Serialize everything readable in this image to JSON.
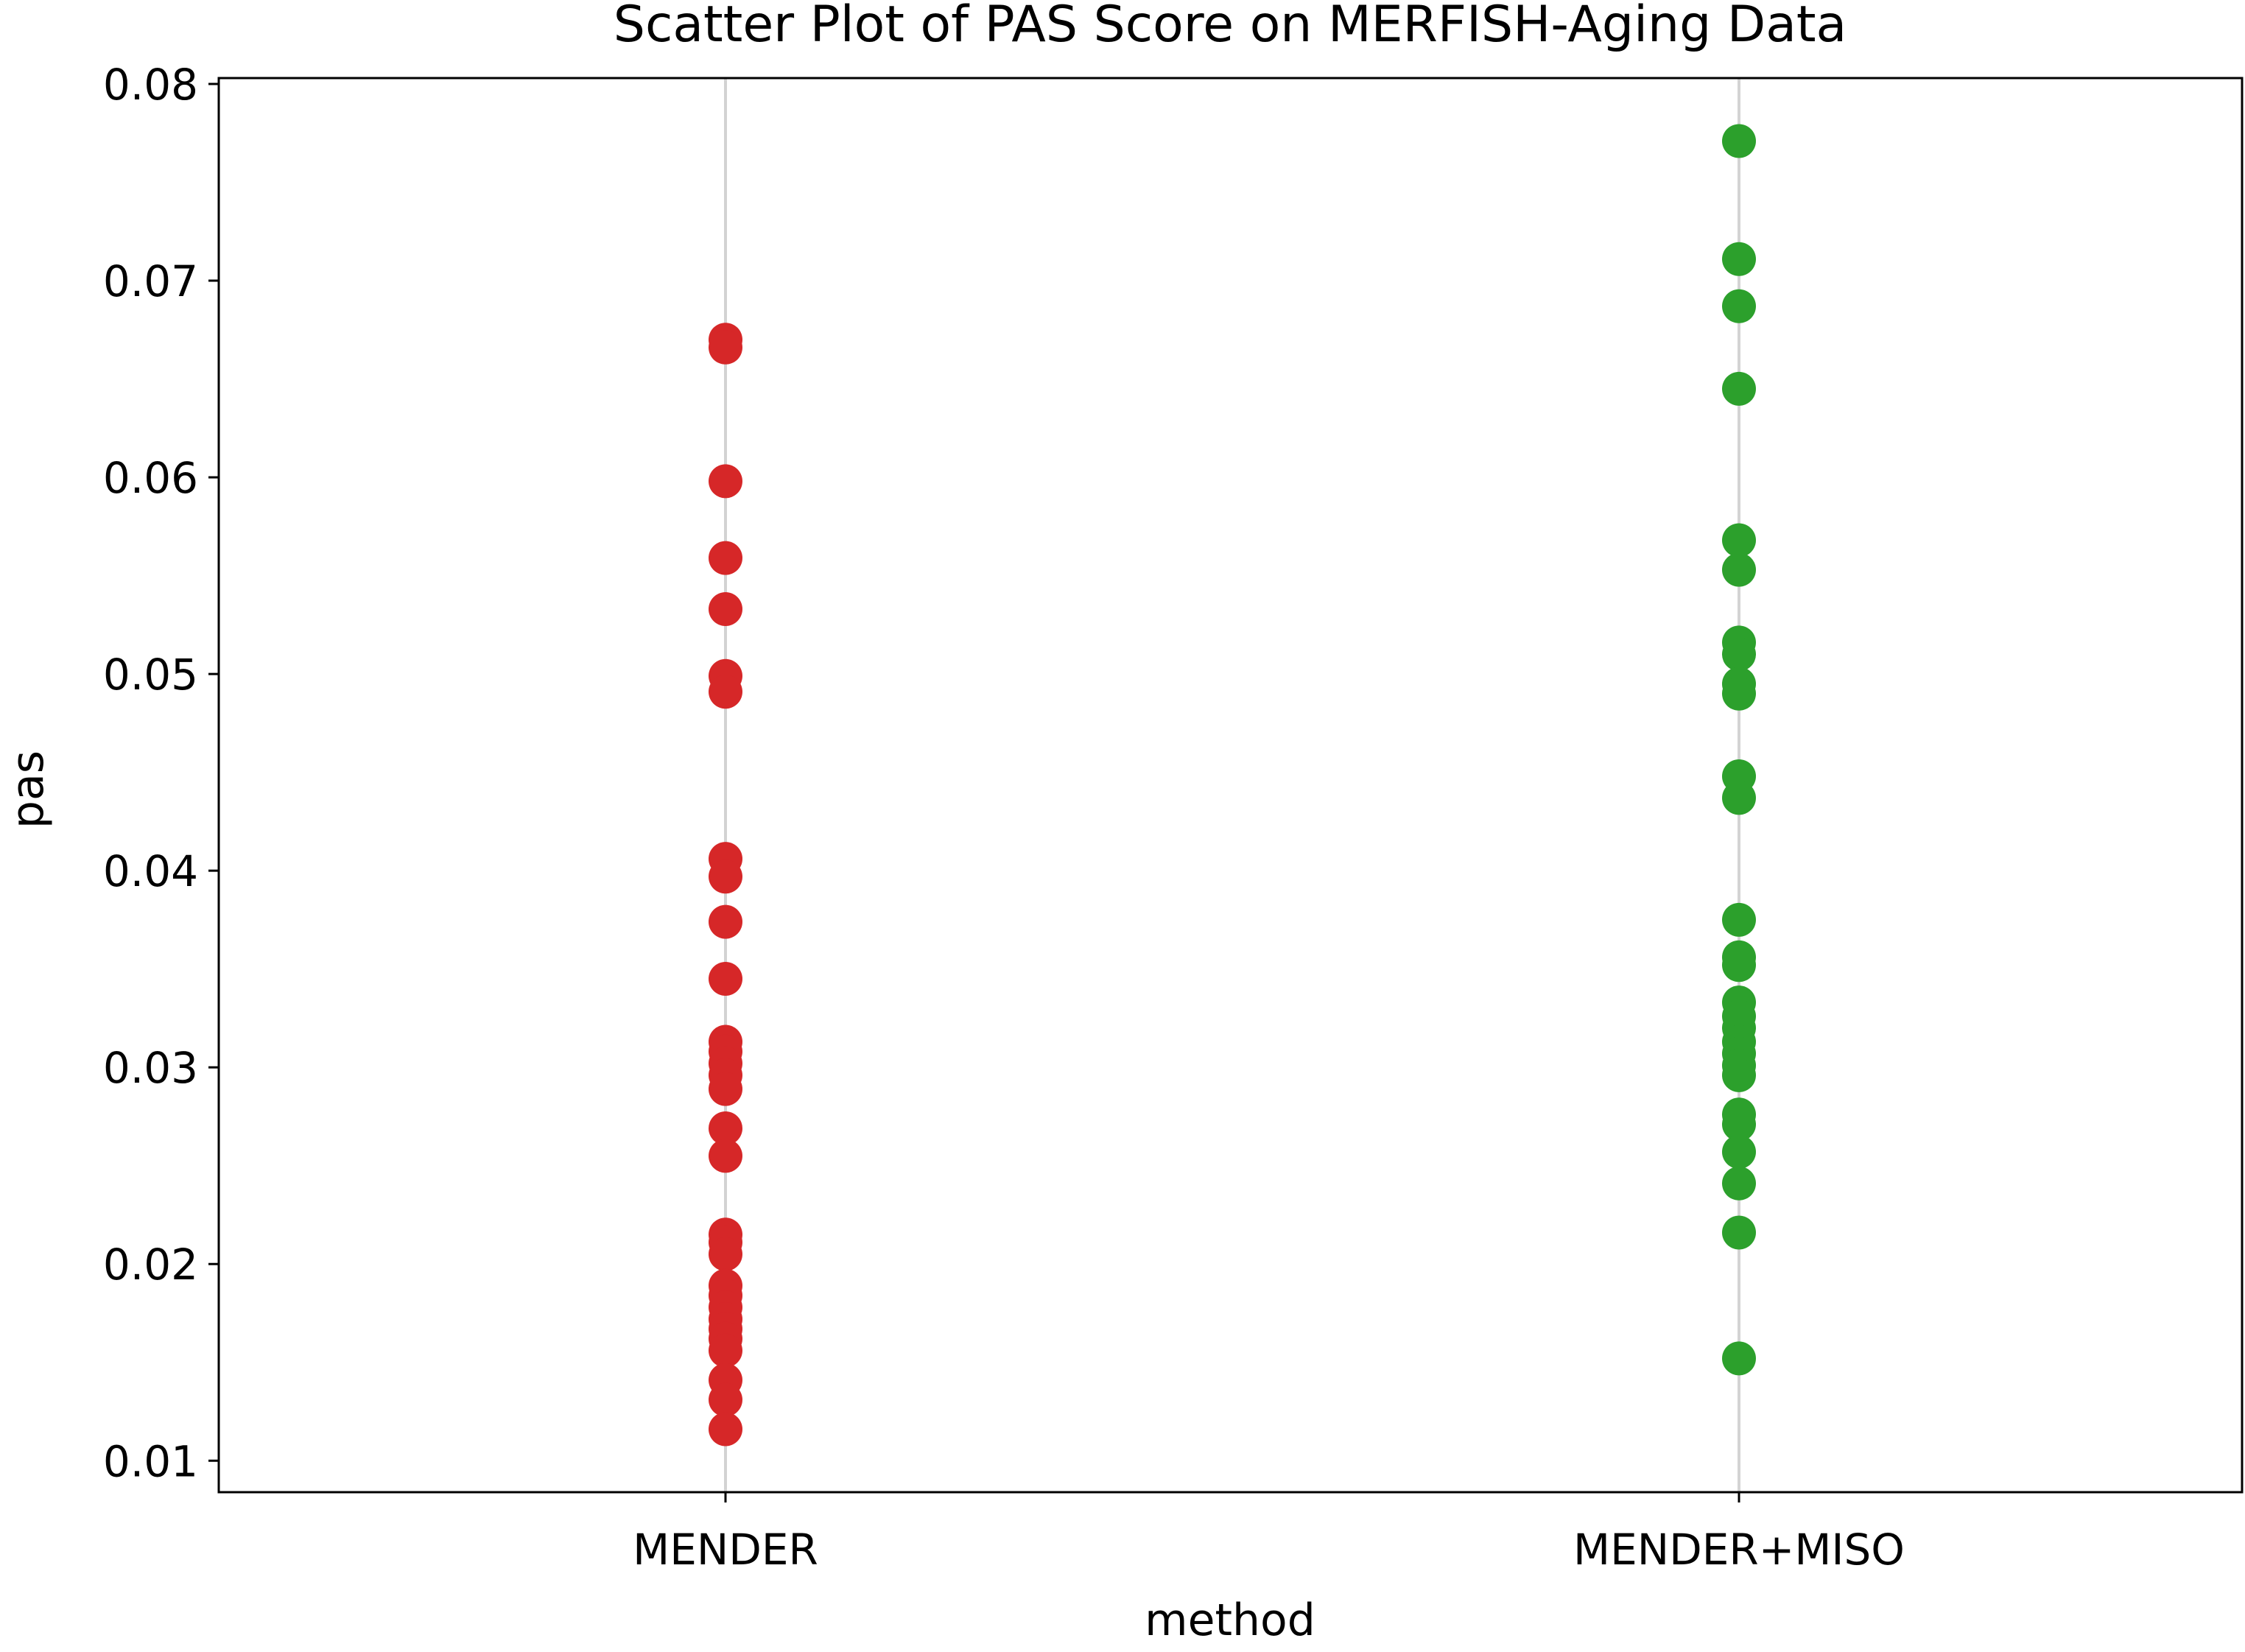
{
  "chart_data": {
    "type": "scatter",
    "title": "Scatter Plot of PAS Score on MERFISH-Aging Data",
    "xlabel": "method",
    "ylabel": "pas",
    "categories": [
      "MENDER",
      "MENDER+MISO"
    ],
    "ylim": [
      0.0084,
      0.0803
    ],
    "yticks": [
      "0.01",
      "0.02",
      "0.03",
      "0.04",
      "0.05",
      "0.06",
      "0.07",
      "0.08"
    ],
    "grid": "vertical lines at categories",
    "series": [
      {
        "category": "MENDER",
        "color": "#d62728",
        "values": [
          0.067,
          0.0666,
          0.0598,
          0.0559,
          0.0533,
          0.0499,
          0.0491,
          0.0406,
          0.0397,
          0.0374,
          0.0345,
          0.0313,
          0.0308,
          0.0302,
          0.0296,
          0.0289,
          0.0269,
          0.0255,
          0.0215,
          0.0211,
          0.0205,
          0.0189,
          0.0184,
          0.0178,
          0.0172,
          0.0167,
          0.0162,
          0.0156,
          0.0141,
          0.0131,
          0.0116
        ]
      },
      {
        "category": "MENDER+MISO",
        "color": "#2ca02c",
        "values": [
          0.0771,
          0.0711,
          0.0687,
          0.0645,
          0.0568,
          0.0553,
          0.0516,
          0.051,
          0.0495,
          0.049,
          0.0448,
          0.0437,
          0.0375,
          0.0356,
          0.0352,
          0.0333,
          0.0326,
          0.032,
          0.0313,
          0.0307,
          0.0301,
          0.0296,
          0.0276,
          0.0271,
          0.0257,
          0.0241,
          0.0216,
          0.0152
        ]
      }
    ]
  }
}
